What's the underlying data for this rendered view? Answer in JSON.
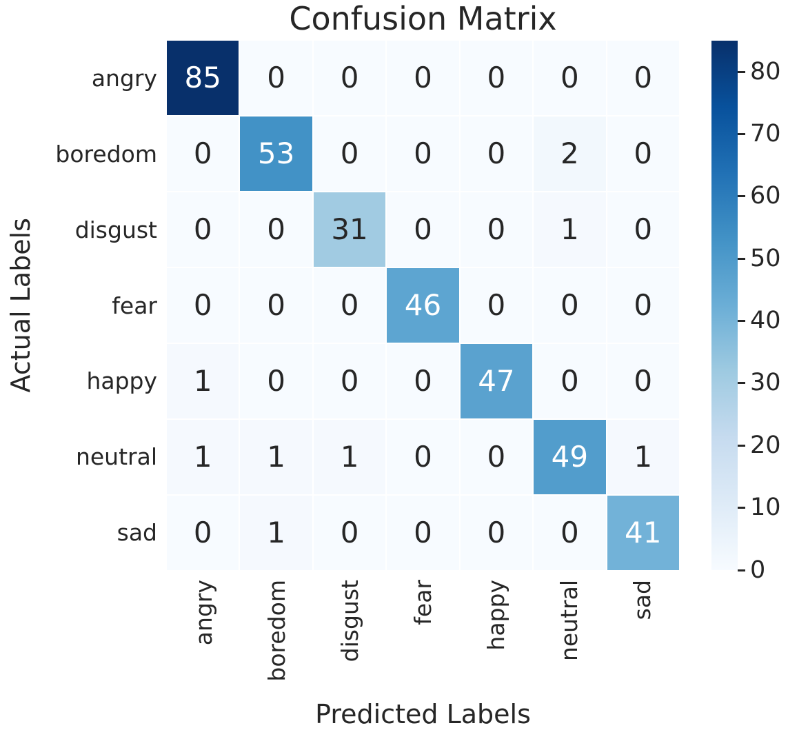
{
  "chart_data": {
    "type": "heatmap",
    "title": "Confusion Matrix",
    "xlabel": "Predicted Labels",
    "ylabel": "Actual Labels",
    "categories": [
      "angry",
      "boredom",
      "disgust",
      "fear",
      "happy",
      "neutral",
      "sad"
    ],
    "matrix": [
      [
        85,
        0,
        0,
        0,
        0,
        0,
        0
      ],
      [
        0,
        53,
        0,
        0,
        0,
        2,
        0
      ],
      [
        0,
        0,
        31,
        0,
        0,
        1,
        0
      ],
      [
        0,
        0,
        0,
        46,
        0,
        0,
        0
      ],
      [
        1,
        0,
        0,
        0,
        47,
        0,
        0
      ],
      [
        1,
        1,
        1,
        0,
        0,
        49,
        1
      ],
      [
        0,
        1,
        0,
        0,
        0,
        0,
        41
      ]
    ],
    "vmin": 0,
    "vmax": 85,
    "colorbar_ticks": [
      0,
      10,
      20,
      30,
      40,
      50,
      60,
      70,
      80
    ],
    "colormap_name": "Blues",
    "colormap_stops": [
      "#f7fbff",
      "#deebf7",
      "#c6dbef",
      "#9ecae1",
      "#6baed6",
      "#4292c6",
      "#2171b5",
      "#08519c",
      "#08306b"
    ],
    "annotation_text_dark": "#262626",
    "annotation_text_light": "#ffffff",
    "light_text_threshold": 0.45,
    "background": "#ffffff",
    "grid": false,
    "legend_position": "right-colorbar"
  }
}
